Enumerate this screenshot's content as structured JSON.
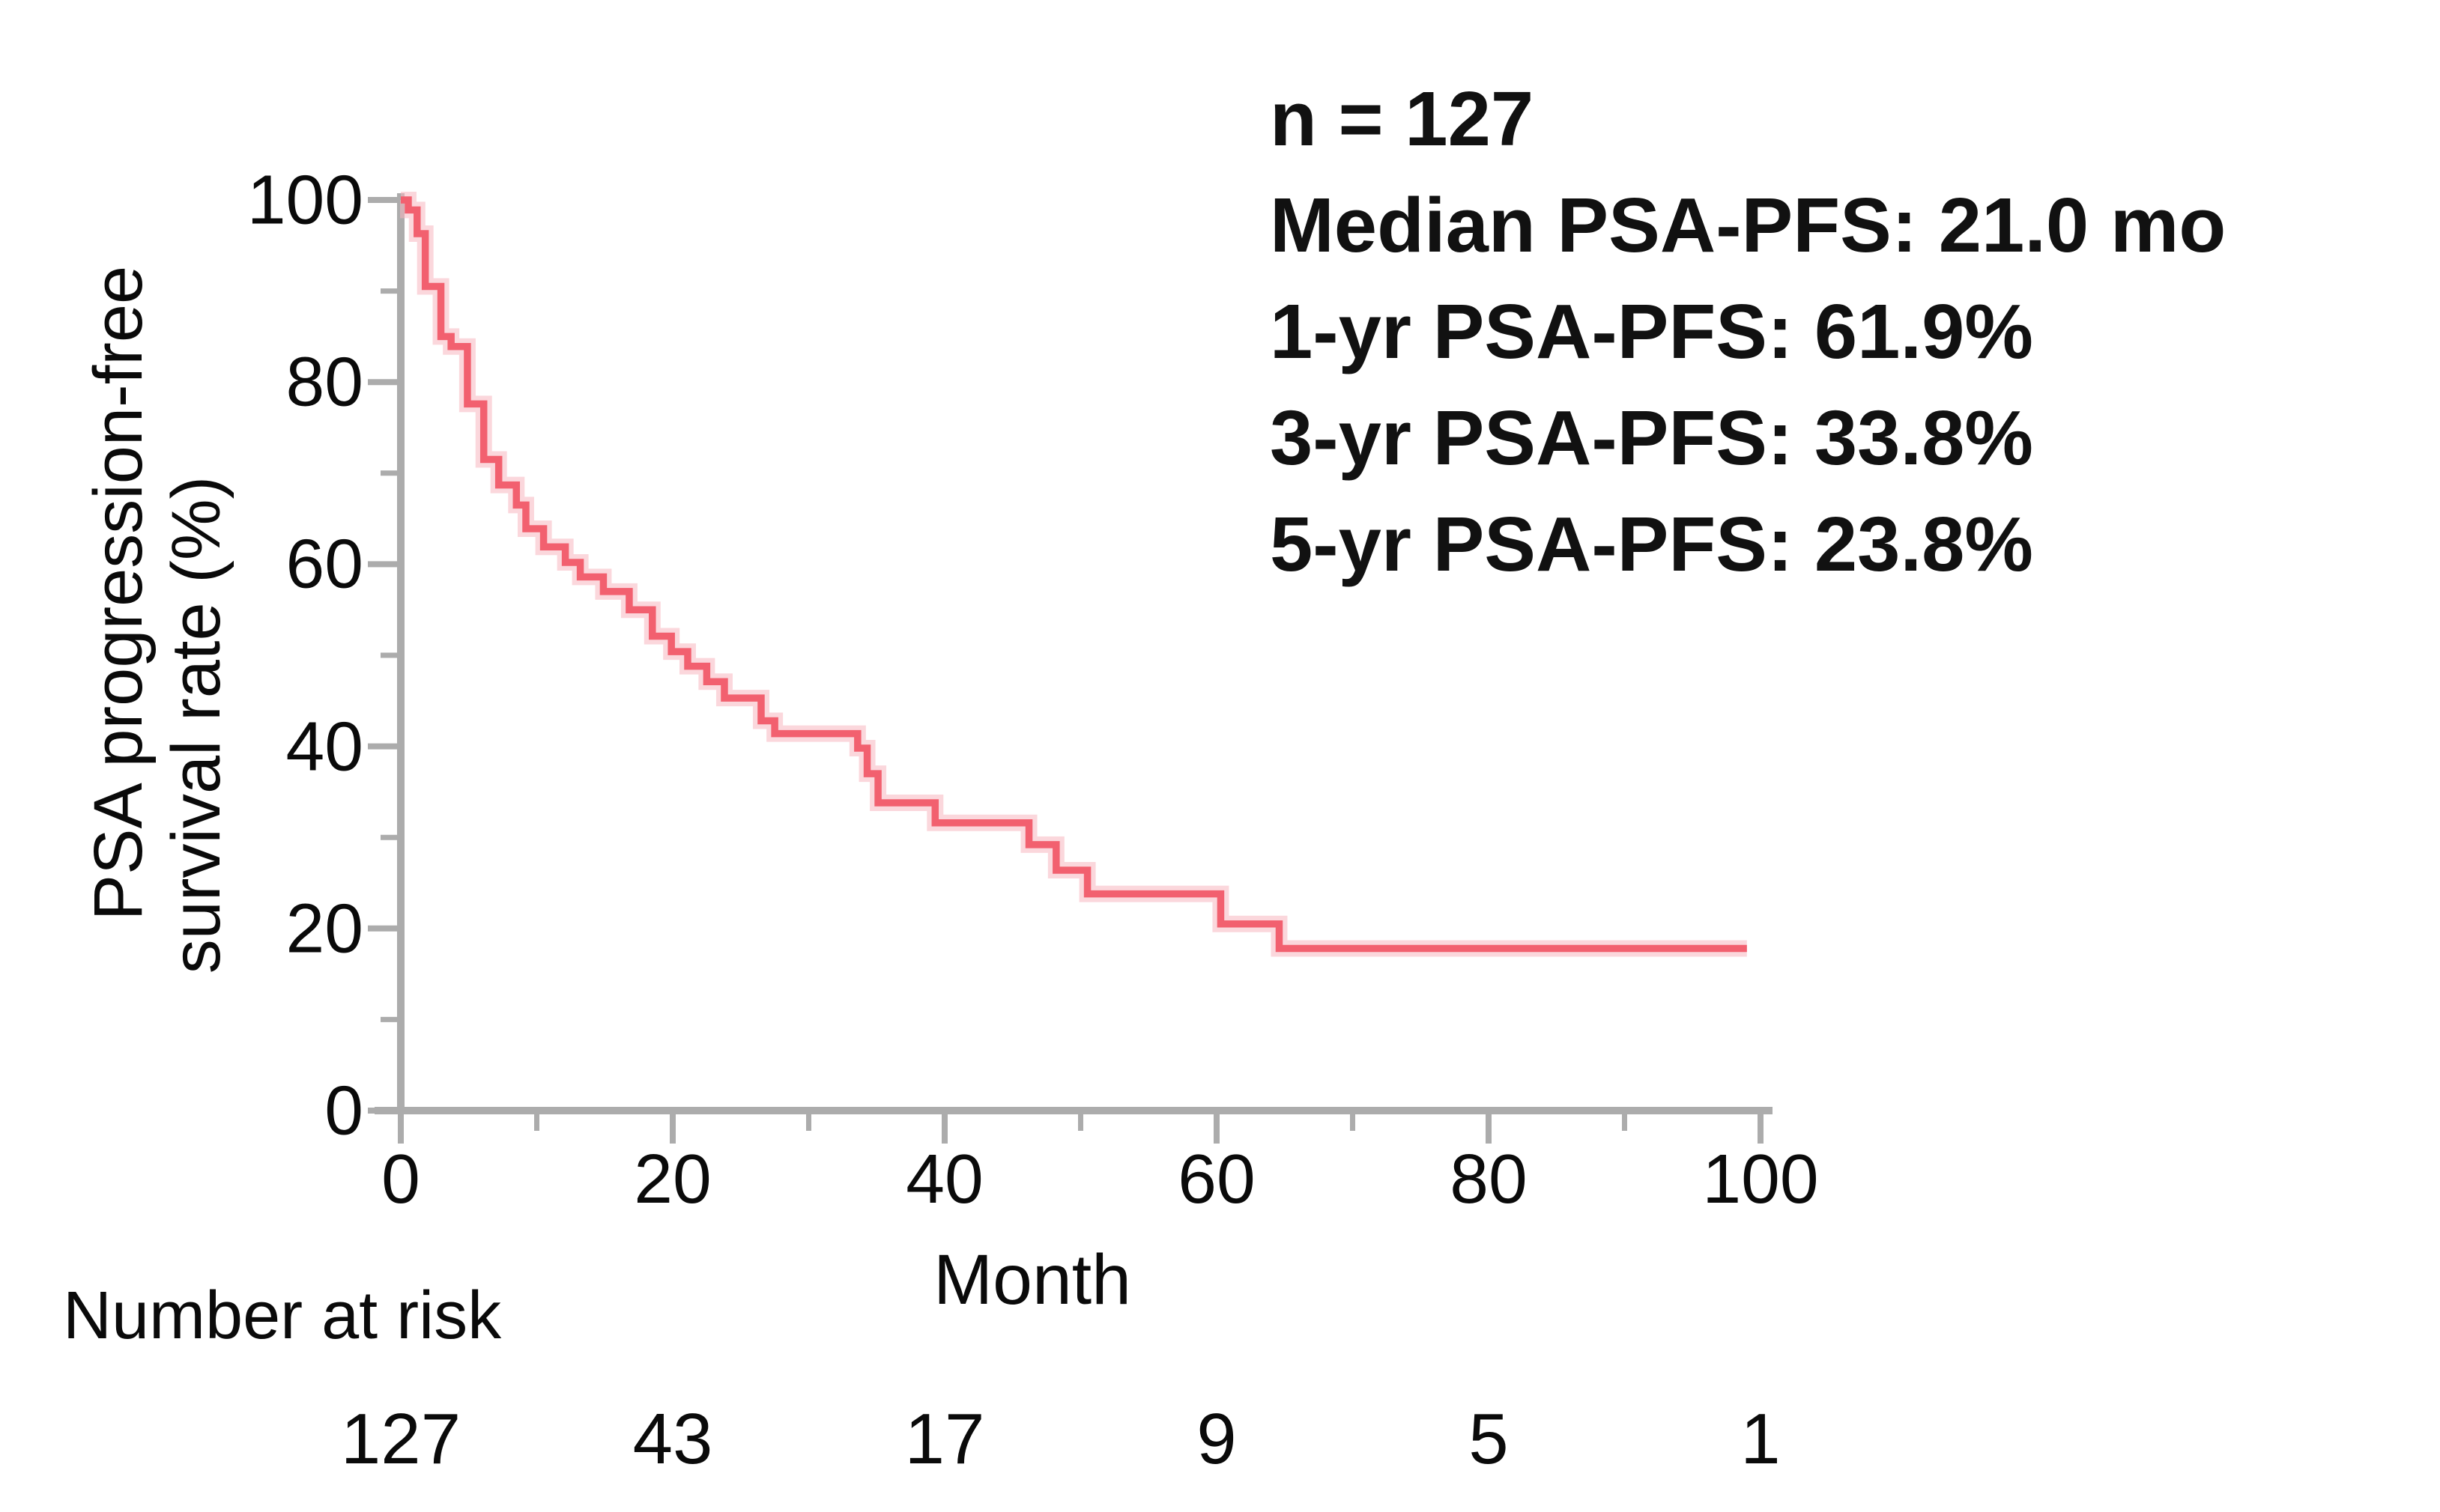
{
  "figure": {
    "y_axis_label_line1": "PSA progression-free",
    "y_axis_label_line2": "survival rate (%)",
    "x_axis_label": "Month",
    "number_at_risk_label": "Number at risk"
  },
  "annotation": {
    "lines": [
      "n = 127",
      "Median PSA-PFS: 21.0 mo",
      "1-yr PSA-PFS: 61.9%",
      "3-yr PSA-PFS: 33.8%",
      "5-yr PSA-PFS: 23.8%"
    ]
  },
  "colors": {
    "curve": "#f2606f",
    "curve_halo": "#f8b7c0",
    "axis": "#acacac",
    "text": "#0a0a0a"
  },
  "chart_data": {
    "type": "line",
    "subtype": "kaplan-meier-step",
    "title": "",
    "xlabel": "Month",
    "ylabel": "PSA progression-free survival rate (%)",
    "xlim": [
      0,
      103
    ],
    "ylim": [
      0,
      100
    ],
    "x_ticks": [
      0,
      20,
      40,
      60,
      80,
      100
    ],
    "y_ticks": [
      0,
      20,
      40,
      60,
      80,
      100
    ],
    "minor_tick_interval": 10,
    "grid": false,
    "legend": "none",
    "stats": {
      "n": 127,
      "median_psa_pfs_months": 21.0,
      "psa_pfs_1yr_pct": 61.9,
      "psa_pfs_3yr_pct": 33.8,
      "psa_pfs_5yr_pct": 23.8
    },
    "series": [
      {
        "name": "PSA-PFS",
        "end_time": 99,
        "steps": [
          [
            0,
            100
          ],
          [
            0.55,
            98.9
          ],
          [
            1.2,
            96.3
          ],
          [
            1.8,
            90.5
          ],
          [
            2.95,
            85.0
          ],
          [
            3.7,
            83.9
          ],
          [
            4.9,
            77.6
          ],
          [
            6.1,
            71.5
          ],
          [
            7.2,
            68.7
          ],
          [
            8.5,
            66.5
          ],
          [
            9.2,
            63.9
          ],
          [
            10.5,
            61.9
          ],
          [
            12.1,
            60.2
          ],
          [
            13.2,
            58.6
          ],
          [
            14.9,
            57.0
          ],
          [
            16.8,
            55.0
          ],
          [
            18.5,
            52.1
          ],
          [
            19.9,
            50.4
          ],
          [
            21.1,
            48.8
          ],
          [
            22.5,
            47.1
          ],
          [
            23.8,
            45.3
          ],
          [
            26.5,
            42.8
          ],
          [
            27.5,
            41.4
          ],
          [
            33.6,
            39.8
          ],
          [
            34.3,
            37.0
          ],
          [
            35.1,
            33.8
          ],
          [
            39.3,
            31.6
          ],
          [
            46.2,
            29.2
          ],
          [
            48.2,
            26.4
          ],
          [
            50.5,
            23.8
          ],
          [
            60.3,
            20.5
          ],
          [
            64.6,
            17.8
          ]
        ]
      }
    ],
    "number_at_risk": {
      "label": "Number at risk",
      "times": [
        0,
        20,
        40,
        60,
        80,
        100
      ],
      "values": [
        127,
        43,
        17,
        9,
        5,
        1
      ]
    }
  }
}
